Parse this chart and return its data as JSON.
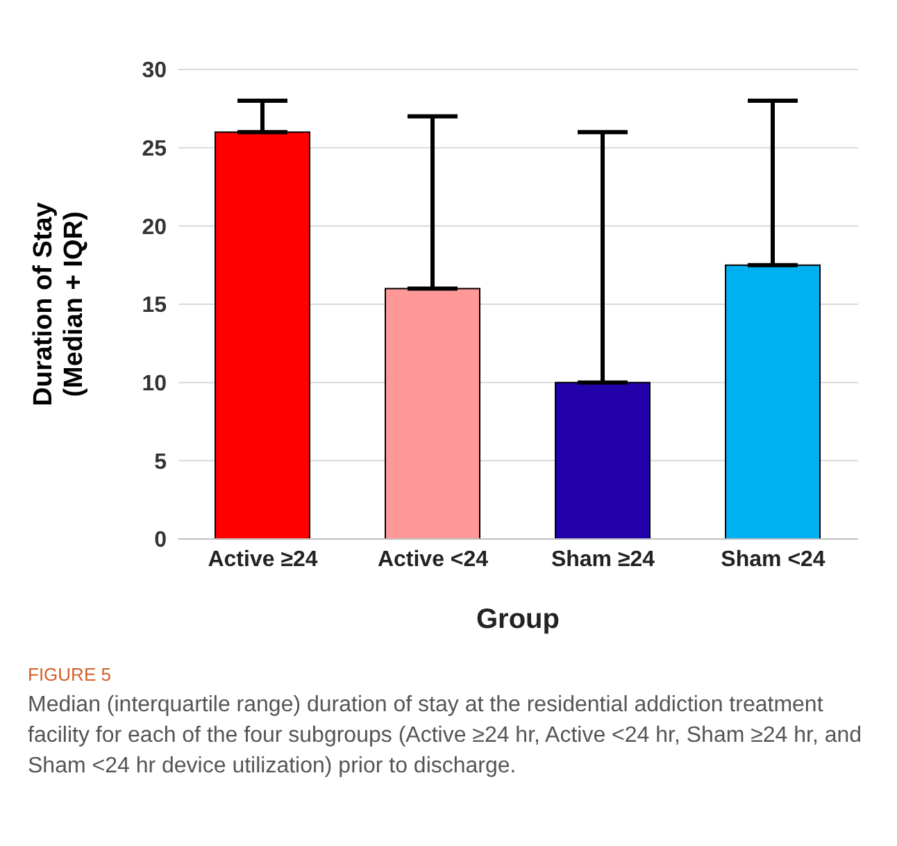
{
  "chart_data": {
    "type": "bar",
    "xlabel": "Group",
    "ylabel": "Duration of Stay\n(Median + IQR)",
    "categories": [
      "Active ≥24",
      "Active <24",
      "Sham ≥24",
      "Sham <24"
    ],
    "values": [
      26,
      16,
      10,
      17.5
    ],
    "colors": [
      "#ff0000",
      "#ff9999",
      "#2200aa",
      "#00b0f0"
    ],
    "errors": [
      [
        26,
        28
      ],
      [
        16,
        27
      ],
      [
        10,
        26
      ],
      [
        17.5,
        28
      ]
    ],
    "ylim": [
      0,
      30
    ],
    "yticks": [
      0,
      5,
      10,
      15,
      20,
      25,
      30
    ],
    "grid": "y",
    "annotations": [
      "FIGURE 5",
      "Median (interquartile range) duration of stay at the residential addiction treatment facility for each of the four subgroups (Active ≥24 hr, Active <24 hr, Sham ≥24 hr, and Sham <24 hr device utilization) prior to discharge."
    ]
  }
}
